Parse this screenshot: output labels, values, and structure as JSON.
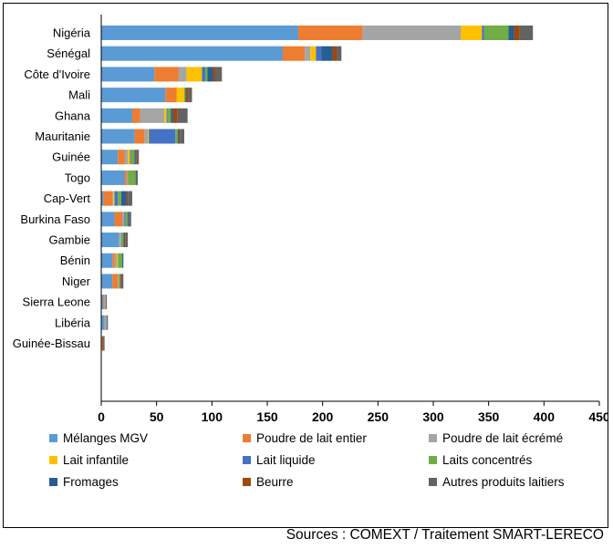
{
  "chart_data": {
    "type": "bar",
    "orientation": "horizontal",
    "stacked": true,
    "categories": [
      "Nigéria",
      "Sénégal",
      "Côte d'Ivoire",
      "Mali",
      "Ghana",
      "Mauritanie",
      "Guinée",
      "Togo",
      "Cap-Vert",
      "Burkina Faso",
      "Gambie",
      "Bénin",
      "Niger",
      "Sierra Leone",
      "Libéria",
      "Guinée-Bissau"
    ],
    "series": [
      {
        "name": "Mélanges MGV",
        "color": "#5B9BD5",
        "values": [
          178,
          164,
          48,
          58,
          28,
          30,
          15,
          21,
          2,
          12,
          16,
          10,
          10,
          2,
          3,
          0
        ]
      },
      {
        "name": "Poudre de lait entier",
        "color": "#ED7D31",
        "values": [
          58,
          20,
          22,
          10,
          7,
          9,
          6,
          2,
          8,
          7,
          0,
          2,
          5,
          1,
          0,
          1
        ]
      },
      {
        "name": "Poudre de lait écrémé",
        "color": "#A5A5A5",
        "values": [
          89,
          5,
          7,
          0,
          22,
          3,
          3,
          1,
          1,
          2,
          2,
          2,
          1,
          1,
          2,
          0
        ]
      },
      {
        "name": "Lait infantile",
        "color": "#FFC000",
        "values": [
          19,
          5,
          14,
          7,
          2,
          1,
          2,
          0,
          1,
          0,
          0,
          1,
          0,
          0,
          0,
          0
        ]
      },
      {
        "name": "Lait liquide",
        "color": "#4472C4",
        "values": [
          2,
          5,
          3,
          0,
          1,
          24,
          1,
          0,
          3,
          1,
          0,
          0,
          0,
          0,
          0,
          0
        ]
      },
      {
        "name": "Laits concentrés",
        "color": "#70AD47",
        "values": [
          22,
          0,
          2,
          1,
          3,
          2,
          3,
          7,
          3,
          2,
          2,
          4,
          1,
          0,
          0,
          0
        ]
      },
      {
        "name": "Fromages",
        "color": "#255E91",
        "values": [
          5,
          10,
          5,
          1,
          2,
          1,
          1,
          0,
          5,
          1,
          1,
          1,
          0,
          0,
          0,
          0
        ]
      },
      {
        "name": "Beurre",
        "color": "#9E480E",
        "values": [
          5,
          4,
          2,
          2,
          4,
          1,
          1,
          0,
          1,
          0,
          1,
          0,
          1,
          0,
          0,
          1
        ]
      },
      {
        "name": "Autres produits laitiers",
        "color": "#636363",
        "values": [
          12,
          4,
          6,
          3,
          9,
          4,
          2,
          2,
          4,
          2,
          2,
          0,
          2,
          1,
          1,
          1
        ]
      }
    ],
    "xlim": [
      0,
      450
    ],
    "xticks": [
      0,
      50,
      100,
      150,
      200,
      250,
      300,
      350,
      400,
      450
    ],
    "xlabel": "",
    "ylabel": "",
    "grid": false,
    "legend_position": "bottom"
  },
  "source_text": "Sources : COMEXT / Traitement SMART-LERECO"
}
